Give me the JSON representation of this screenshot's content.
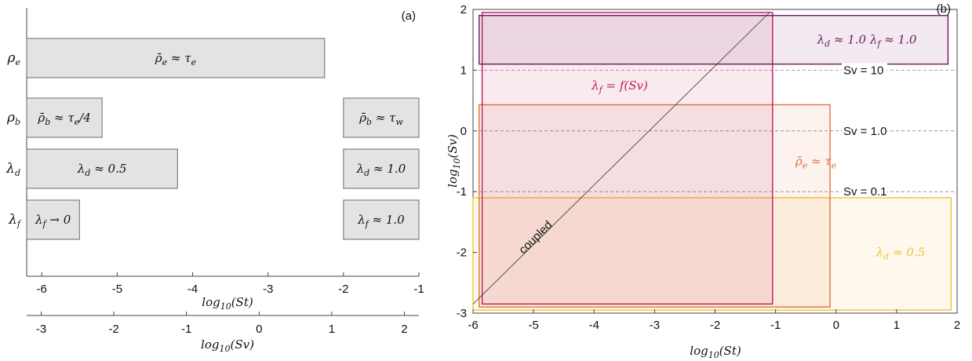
{
  "chart_data": [
    {
      "panel_label": "(a)",
      "type": "bar",
      "orientation": "horizontal",
      "xlabel": "log_{10}(St)",
      "xlabel2": "log_{10}(Sv)",
      "x_ticks": [
        "-6",
        "-5",
        "-4",
        "-3",
        "-2",
        "-1"
      ],
      "x2_ticks": [
        "-3",
        "-2",
        "-1",
        "0",
        "1",
        "2"
      ],
      "xlim": [
        -6.2,
        -1
      ],
      "x2lim": [
        -3.2,
        2.2
      ],
      "rows": [
        {
          "label": "ρ_e",
          "bars": [
            {
              "x0": -6.2,
              "x1": -2.25,
              "text": "ρ̄_e ≈ τ_e"
            }
          ]
        },
        {
          "label": "ρ_b",
          "bars": [
            {
              "x0": -6.2,
              "x1": -5.2,
              "text": "ρ̄_b ≈ τ_e/4"
            },
            {
              "x0": -2.0,
              "x1": -1.0,
              "text": "ρ̄_b ≈ τ_w"
            }
          ]
        },
        {
          "label": "λ_d",
          "bars": [
            {
              "x0": -6.2,
              "x1": -4.2,
              "text": "λ_d ≈ 0.5"
            },
            {
              "x0": -2.0,
              "x1": -1.0,
              "text": "λ_d ≈ 1.0"
            }
          ]
        },
        {
          "label": "λ_f",
          "bars": [
            {
              "x0": -6.2,
              "x1": -5.5,
              "text": "λ_f → 0"
            },
            {
              "x0": -2.0,
              "x1": -1.0,
              "text": "λ_f ≈ 1.0"
            }
          ]
        }
      ]
    },
    {
      "panel_label": "(b)",
      "type": "region",
      "xlabel": "log_{10}(St)",
      "ylabel": "log_{10}(Sv)",
      "xlim": [
        -6,
        2
      ],
      "ylim": [
        -3,
        2
      ],
      "x_ticks": [
        "-6",
        "-5",
        "-4",
        "-3",
        "-2",
        "-1",
        "0",
        "1",
        "2"
      ],
      "y_ticks": [
        "-3",
        "-2",
        "-1",
        "0",
        "1",
        "2"
      ],
      "reference_lines": [
        {
          "y": 1,
          "label": "Sv = 10"
        },
        {
          "y": 0,
          "label": "Sv = 1.0"
        },
        {
          "y": -1,
          "label": "Sv = 0.1"
        }
      ],
      "diagonal": {
        "x": [
          -6,
          -1.1
        ],
        "y": [
          -2.85,
          1.95
        ],
        "label": "coupled"
      },
      "regions": [
        {
          "x0": -6.0,
          "x1": 1.9,
          "y0": -2.95,
          "y1": -1.1,
          "label": "λ_d ≈ 0.5",
          "color": "#f2c12e"
        },
        {
          "x0": -5.9,
          "x1": -0.1,
          "y0": -2.9,
          "y1": 0.43,
          "label": "ρ̄_e ≈ τ_e",
          "color": "#e0733f"
        },
        {
          "x0": -5.85,
          "x1": -1.05,
          "y0": -2.85,
          "y1": 1.95,
          "label": "λ_f = f(Sv)",
          "color": "#c2185b"
        },
        {
          "x0": -5.9,
          "x1": 1.85,
          "y0": 1.1,
          "y1": 1.9,
          "label": "λ_d ≈ 1.0   λ_f ≈ 1.0",
          "color": "#6d1b5e"
        }
      ]
    }
  ]
}
